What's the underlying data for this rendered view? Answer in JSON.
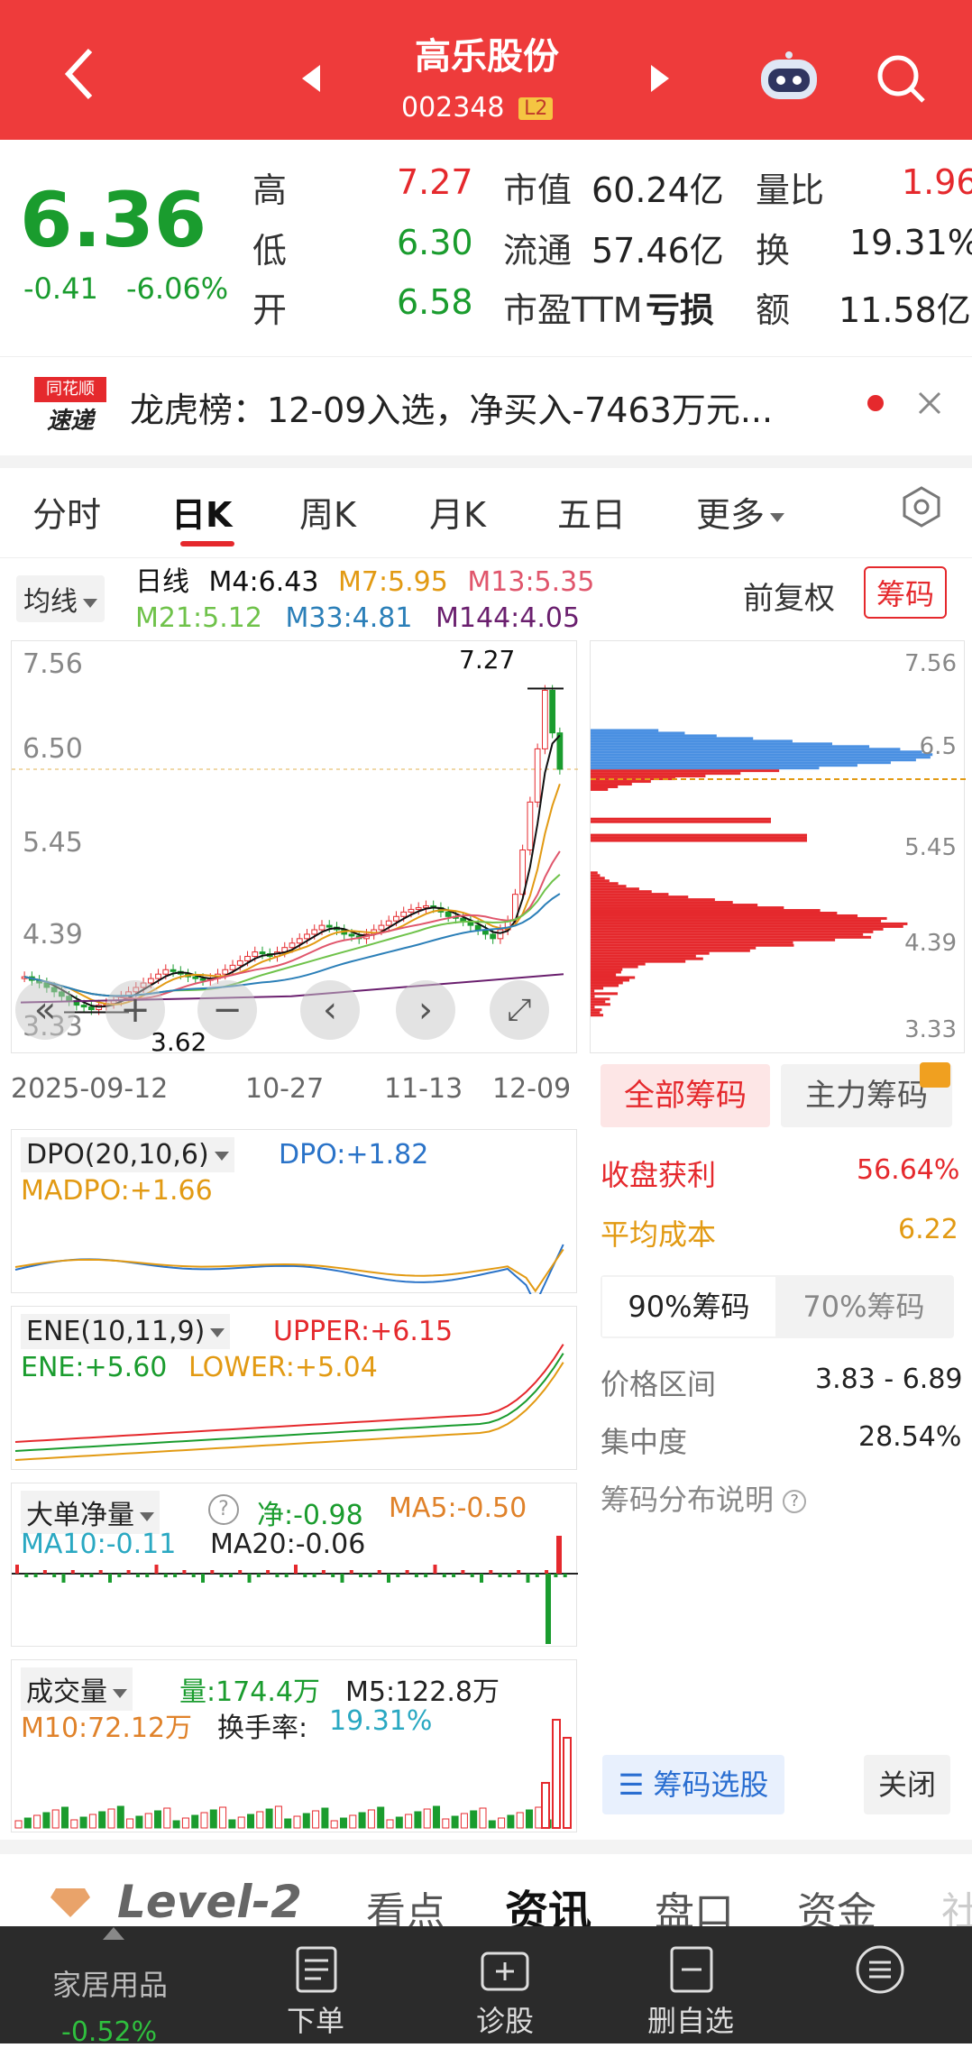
{
  "header": {
    "title": "高乐股份",
    "code": "002348",
    "badge": "L2"
  },
  "quote": {
    "price": "6.36",
    "change": "-0.41",
    "change_pct": "-6.06%",
    "rows": [
      {
        "l1": "高",
        "v1": "7.27",
        "l2": "市值",
        "v2": "60.24亿",
        "l3": "量比",
        "v3": "1.96"
      },
      {
        "l1": "低",
        "v1": "6.30",
        "l2": "流通",
        "v2": "57.46亿",
        "l3": "换",
        "v3": "19.31%"
      },
      {
        "l1": "开",
        "v1": "6.58",
        "l2": "市盈TTM",
        "v2": "亏损",
        "l3": "额",
        "v3": "11.58亿"
      }
    ]
  },
  "news": {
    "logo_top": "同花顺",
    "logo_bottom": "速递",
    "text": "龙虎榜：12-09入选，净买入-7463万元..."
  },
  "tabs": [
    {
      "label": "分时"
    },
    {
      "label": "日K"
    },
    {
      "label": "周K"
    },
    {
      "label": "月K"
    },
    {
      "label": "五日"
    },
    {
      "label": "更多"
    }
  ],
  "ma_bar": {
    "ma_select": "均线",
    "k_type": "日线",
    "m4": "M4:6.43",
    "m7": "M7:5.95",
    "m13": "M13:5.35",
    "m21": "M21:5.12",
    "m33": "M33:4.81",
    "m144": "M144:4.05",
    "adjust": "前复权",
    "chips_button": "筹码"
  },
  "kline": {
    "y_ticks": [
      "7.56",
      "6.50",
      "5.45",
      "4.39",
      "3.33"
    ],
    "high_label": "7.27",
    "low_label": "3.62",
    "x_dates": [
      "2025-09-12",
      "10-27",
      "11-13",
      "12-09"
    ]
  },
  "dpo": {
    "name": "DPO(20,10,6)",
    "dpo": "DPO:+1.82",
    "madpo": "MADPO:+1.66"
  },
  "ene": {
    "name": "ENE(10,11,9)",
    "upper": "UPPER:+6.15",
    "ene": "ENE:+5.60",
    "lower": "LOWER:+5.04"
  },
  "bigorder": {
    "name": "大单净量",
    "net": "净:-0.98",
    "ma5": "MA5:-0.50",
    "ma10": "MA10:-0.11",
    "ma20": "MA20:-0.06"
  },
  "volume": {
    "name": "成交量",
    "vol": "量:174.4万",
    "m5": "M5:122.8万",
    "m10": "M10:72.12万",
    "turnover_label": "换手率:",
    "turnover": "19.31%"
  },
  "chips": {
    "tab_all": "全部筹码",
    "tab_main": "主力筹码",
    "y_ticks": [
      "7.56",
      "6.5",
      "5.45",
      "4.39",
      "3.33"
    ],
    "profit_label": "收盘获利",
    "profit": "56.64%",
    "avg_label": "平均成本",
    "avg": "6.22",
    "t90": "90%筹码",
    "t70": "70%筹码",
    "range_label": "价格区间",
    "range": "3.83 - 6.89",
    "conc_label": "集中度",
    "conc": "28.54%",
    "help": "筹码分布说明",
    "select_btn": "筹码选股",
    "close_btn": "关闭"
  },
  "bottom_tabs": [
    {
      "label": "Level-2"
    },
    {
      "label": "看点"
    },
    {
      "label": "资讯"
    },
    {
      "label": "盘口"
    },
    {
      "label": "资金"
    },
    {
      "label": "社"
    }
  ],
  "nav": {
    "sector": "家居用品",
    "sector_change": "-0.52%",
    "order": "下单",
    "diagnose": "诊股",
    "delete": "删自选"
  },
  "colors": {
    "header_red": "#ee3b3b",
    "up_red": "#e5292d",
    "down_green": "#1a9c2e"
  },
  "chart_data": [
    {
      "type": "candlestick",
      "title": "日K",
      "ylim": [
        3.33,
        7.56
      ],
      "x_labels": [
        "2025-09-12",
        "10-27",
        "11-13",
        "12-09"
      ],
      "closes": [
        4.02,
        3.98,
        3.95,
        3.9,
        3.85,
        3.8,
        3.75,
        3.7,
        3.68,
        3.65,
        3.7,
        3.72,
        3.75,
        3.8,
        3.85,
        3.9,
        3.95,
        4.0,
        4.05,
        4.1,
        4.08,
        4.05,
        4.02,
        4.0,
        3.98,
        4.0,
        4.05,
        4.1,
        4.15,
        4.2,
        4.25,
        4.3,
        4.28,
        4.25,
        4.3,
        4.35,
        4.4,
        4.45,
        4.5,
        4.55,
        4.6,
        4.58,
        4.55,
        4.5,
        4.48,
        4.45,
        4.5,
        4.55,
        4.6,
        4.65,
        4.7,
        4.75,
        4.78,
        4.8,
        4.82,
        4.8,
        4.75,
        4.7,
        4.68,
        4.65,
        4.6,
        4.55,
        4.5,
        4.45,
        4.55,
        4.65,
        4.95,
        5.45,
        5.99,
        6.59,
        7.25,
        6.77,
        6.36
      ],
      "ma": [
        {
          "name": "M4",
          "value": 6.43
        },
        {
          "name": "M7",
          "value": 5.95
        },
        {
          "name": "M13",
          "value": 5.35
        },
        {
          "name": "M21",
          "value": 5.12
        },
        {
          "name": "M33",
          "value": 4.81
        },
        {
          "name": "M144",
          "value": 4.05
        }
      ],
      "high": 7.27,
      "low": 3.62
    },
    {
      "type": "bar",
      "title": "筹码分布",
      "ylim": [
        3.33,
        7.56
      ],
      "avg_cost": 6.22,
      "profit_ratio": 0.5664
    }
  ]
}
